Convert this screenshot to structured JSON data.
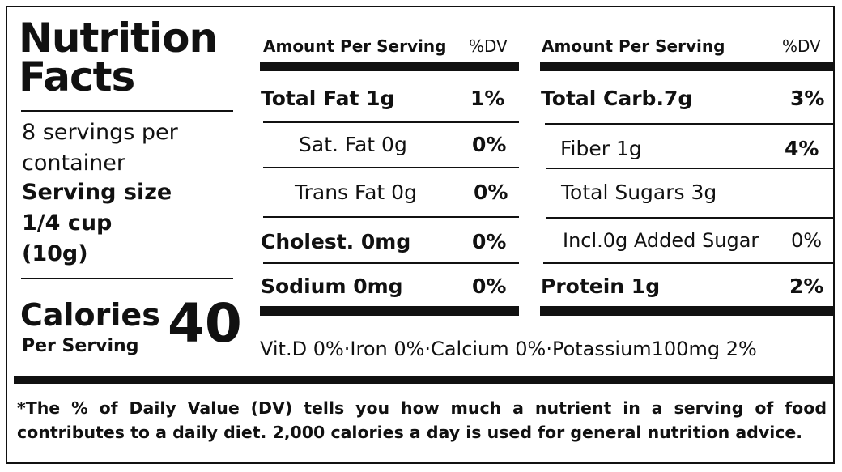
{
  "title_line1": "Nutrition",
  "title_line2": "Facts",
  "servings_line1": "8 servings per",
  "servings_line2": "container",
  "serving_size_label": "Serving size",
  "serving_size_line1": "1/4 cup",
  "serving_size_line2": "(10g)",
  "calories_label": "Calories",
  "calories_sub": "Per Serving",
  "calories_value": "40",
  "left_table": {
    "header_amount": "Amount Per Serving",
    "header_dv": "%DV",
    "rows": [
      {
        "name": "Total Fat 1g",
        "dv": "1%"
      },
      {
        "name": "Sat. Fat 0g",
        "dv": "0%"
      },
      {
        "name": "Trans Fat 0g",
        "dv": "0%"
      },
      {
        "name": "Cholest. 0mg",
        "dv": "0%"
      },
      {
        "name": "Sodium 0mg",
        "dv": "0%"
      }
    ]
  },
  "right_table": {
    "header_amount": "Amount Per Serving",
    "header_dv": "%DV",
    "rows": [
      {
        "name": "Total Carb.7g",
        "dv": "3%"
      },
      {
        "name": "Fiber 1g",
        "dv": "4%"
      },
      {
        "name": "Total Sugars  3g",
        "dv": ""
      },
      {
        "name": "Incl.0g Added Sugar",
        "dv": "0%"
      },
      {
        "name": "Protein 1g",
        "dv": "2%"
      }
    ]
  },
  "vitamins": "Vit.D  0%·Iron 0%·Calcium 0%·Potassium100mg 2%",
  "footnote": "*The % of Daily Value (DV) tells you how much a nutrient in a serving of food contributes to a daily diet. 2,000 calories a day is used for general nutrition advice."
}
